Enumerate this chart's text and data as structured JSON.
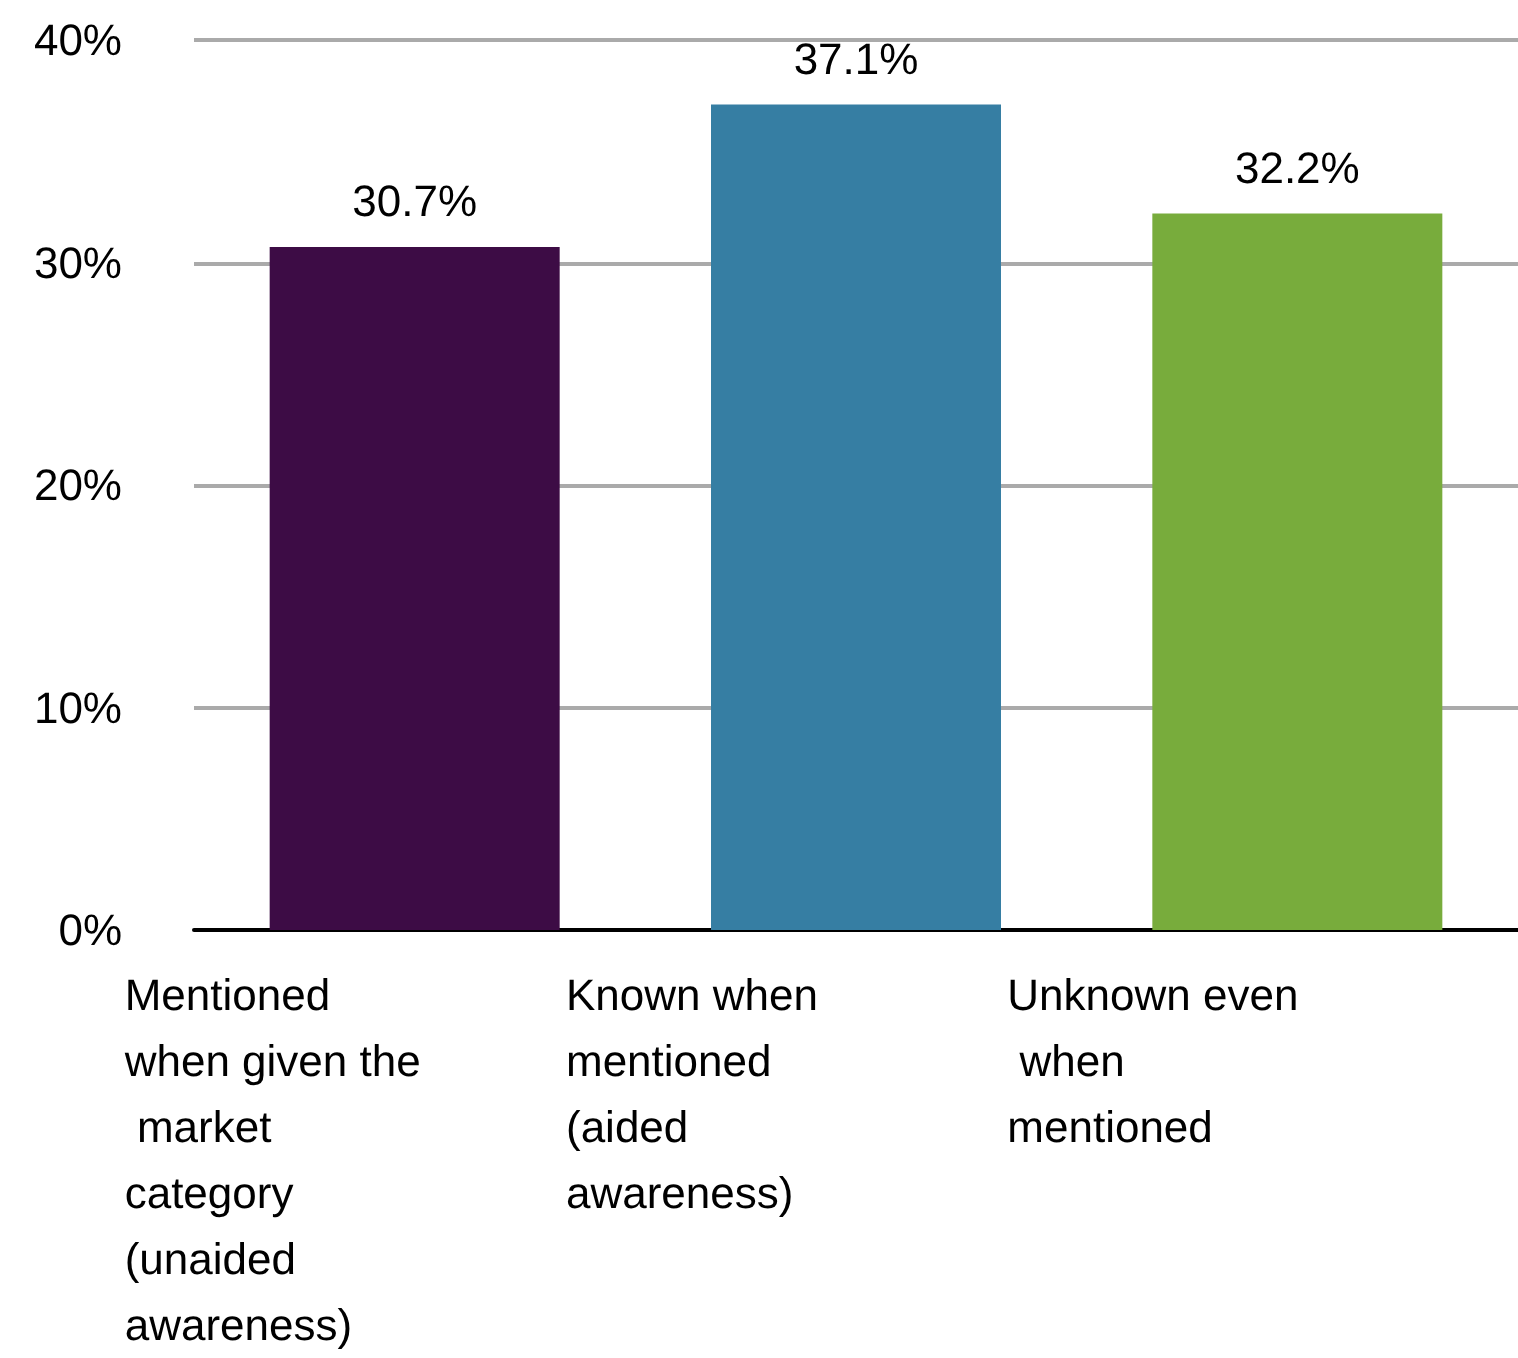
{
  "chart_data": {
    "type": "bar",
    "categories": [
      "Mentioned when given the market category (unaided awareness)",
      "Known when mentioned (aided awareness)",
      "Unknown even when mentioned"
    ],
    "values": [
      30.7,
      37.1,
      32.2
    ],
    "colors": [
      "#3d0c45",
      "#367ea3",
      "#78ac3c"
    ],
    "value_labels": [
      "30.7%",
      "37.1%",
      "32.2%"
    ],
    "ylim": [
      0,
      40
    ],
    "yticks": [
      {
        "value": 0,
        "label": "0%"
      },
      {
        "value": 10,
        "label": "10%"
      },
      {
        "value": 20,
        "label": "20%"
      },
      {
        "value": 30,
        "label": "30%"
      },
      {
        "value": 40,
        "label": "40%"
      }
    ],
    "grid": "y"
  }
}
